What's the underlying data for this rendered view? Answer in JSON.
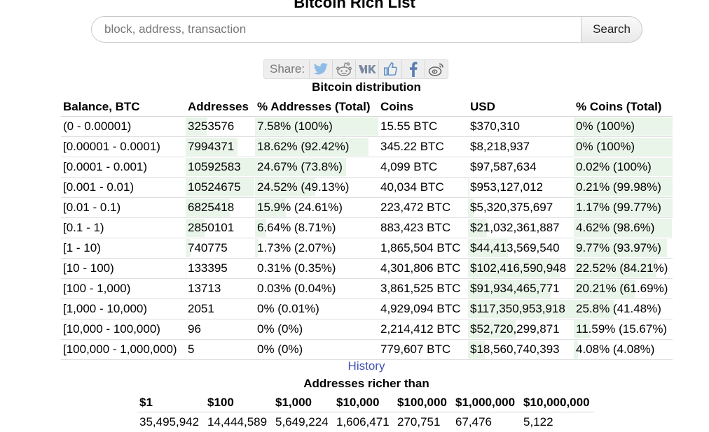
{
  "page": {
    "title": "Bitcoin Rich List"
  },
  "search": {
    "placeholder": "block, address, transaction",
    "button_label": "Search"
  },
  "share": {
    "label": "Share:",
    "icons": [
      "twitter-icon",
      "reddit-icon",
      "vk-icon",
      "like-icon",
      "facebook-icon",
      "weibo-icon"
    ],
    "icon_color": "#8fbce6"
  },
  "distribution": {
    "caption": "Bitcoin distribution",
    "headers": [
      "Balance, BTC",
      "Addresses",
      "% Addresses (Total)",
      "Coins",
      "USD",
      "% Coins (Total)"
    ],
    "rows": [
      {
        "balance": "(0 - 0.00001)",
        "addresses": "3253576",
        "pct_addresses": "7.58% (100%)",
        "coins": "15.55 BTC",
        "usd": "$370,310",
        "pct_coins": "0% (100%)",
        "addr_share": 0.31,
        "pct_addr_share": 1.0,
        "usd_share": 0.0,
        "pct_coins_share": 1.0
      },
      {
        "balance": "[0.00001 - 0.0001)",
        "addresses": "7994371",
        "pct_addresses": "18.62% (92.42%)",
        "coins": "345.22 BTC",
        "usd": "$8,218,937",
        "pct_coins": "0% (100%)",
        "addr_share": 0.75,
        "pct_addr_share": 0.92,
        "usd_share": 0.0,
        "pct_coins_share": 1.0
      },
      {
        "balance": "[0.0001 - 0.001)",
        "addresses": "10592583",
        "pct_addresses": "24.67% (73.8%)",
        "coins": "4,099 BTC",
        "usd": "$97,587,634",
        "pct_coins": "0.02% (100%)",
        "addr_share": 1.0,
        "pct_addr_share": 0.74,
        "usd_share": 0.0,
        "pct_coins_share": 1.0
      },
      {
        "balance": "[0.001 - 0.01)",
        "addresses": "10524675",
        "pct_addresses": "24.52% (49.13%)",
        "coins": "40,034 BTC",
        "usd": "$953,127,012",
        "pct_coins": "0.21% (99.98%)",
        "addr_share": 0.99,
        "pct_addr_share": 0.49,
        "usd_share": 0.01,
        "pct_coins_share": 1.0
      },
      {
        "balance": "[0.01 - 0.1)",
        "addresses": "6825418",
        "pct_addresses": "15.9% (24.61%)",
        "coins": "223,472 BTC",
        "usd": "$5,320,375,697",
        "pct_coins": "1.17% (99.77%)",
        "addr_share": 0.64,
        "pct_addr_share": 0.25,
        "usd_share": 0.05,
        "pct_coins_share": 1.0
      },
      {
        "balance": "[0.1 - 1)",
        "addresses": "2850101",
        "pct_addresses": "6.64% (8.71%)",
        "coins": "883,423 BTC",
        "usd": "$21,032,361,887",
        "pct_coins": "4.62% (98.6%)",
        "addr_share": 0.27,
        "pct_addr_share": 0.09,
        "usd_share": 0.18,
        "pct_coins_share": 0.99
      },
      {
        "balance": "[1 - 10)",
        "addresses": "740775",
        "pct_addresses": "1.73% (2.07%)",
        "coins": "1,865,504 BTC",
        "usd": "$44,413,569,540",
        "pct_coins": "9.77% (93.97%)",
        "addr_share": 0.07,
        "pct_addr_share": 0.02,
        "usd_share": 0.38,
        "pct_coins_share": 0.94
      },
      {
        "balance": "[10 - 100)",
        "addresses": "133395",
        "pct_addresses": "0.31% (0.35%)",
        "coins": "4,301,806 BTC",
        "usd": "$102,416,590,948",
        "pct_coins": "22.52% (84.21%)",
        "addr_share": 0.01,
        "pct_addr_share": 0.0,
        "usd_share": 0.87,
        "pct_coins_share": 0.84
      },
      {
        "balance": "[100 - 1,000)",
        "addresses": "13713",
        "pct_addresses": "0.03% (0.04%)",
        "coins": "3,861,525 BTC",
        "usd": "$91,934,465,771",
        "pct_coins": "20.21% (61.69%)",
        "addr_share": 0.0,
        "pct_addr_share": 0.0,
        "usd_share": 0.78,
        "pct_coins_share": 0.62
      },
      {
        "balance": "[1,000 - 10,000)",
        "addresses": "2051",
        "pct_addresses": "0% (0.01%)",
        "coins": "4,929,094 BTC",
        "usd": "$117,350,953,918",
        "pct_coins": "25.8% (41.48%)",
        "addr_share": 0.0,
        "pct_addr_share": 0.0,
        "usd_share": 1.0,
        "pct_coins_share": 0.41
      },
      {
        "balance": "[10,000 - 100,000)",
        "addresses": "96",
        "pct_addresses": "0% (0%)",
        "coins": "2,214,412 BTC",
        "usd": "$52,720,299,871",
        "pct_coins": "11.59% (15.67%)",
        "addr_share": 0.0,
        "pct_addr_share": 0.0,
        "usd_share": 0.45,
        "pct_coins_share": 0.16
      },
      {
        "balance": "[100,000 - 1,000,000)",
        "addresses": "5",
        "pct_addresses": "0% (0%)",
        "coins": "779,607 BTC",
        "usd": "$18,560,740,393",
        "pct_coins": "4.08% (4.08%)",
        "addr_share": 0.0,
        "pct_addr_share": 0.0,
        "usd_share": 0.16,
        "pct_coins_share": 0.04
      }
    ]
  },
  "history": {
    "label": "History"
  },
  "richer": {
    "caption": "Addresses richer than",
    "headers": [
      "$1",
      "$100",
      "$1,000",
      "$10,000",
      "$100,000",
      "$1,000,000",
      "$10,000,000"
    ],
    "values": [
      "35,495,942",
      "14,444,589",
      "5,649,224",
      "1,606,471",
      "270,751",
      "67,476",
      "5,122"
    ]
  }
}
